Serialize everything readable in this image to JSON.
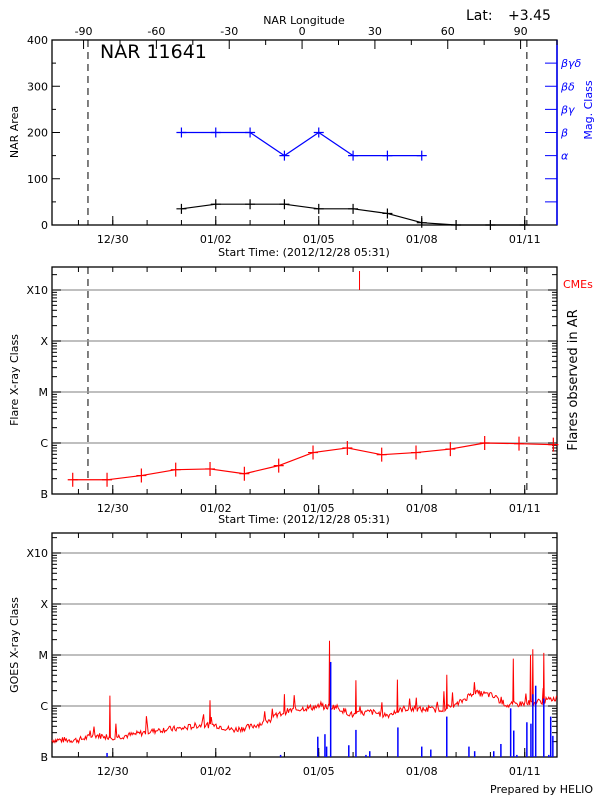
{
  "header": {
    "lat_label": "Lat:",
    "lat_value": "+3.45"
  },
  "footer": {
    "credit": "Prepared by HELIO"
  },
  "colors": {
    "area": "#000000",
    "mag_class": "#0000ff",
    "flare": "#ff0000",
    "cme": "#ff0000",
    "goes_long": "#ff0000",
    "goes_bars": "#0000ff",
    "grid": "#999999"
  },
  "time_axis": {
    "start": "2012-12-28 05:31",
    "end": "2013-01-11 22:30",
    "xlabel": "Start Time: (2012/12/28 05:31)",
    "ticks": [
      {
        "label": "12/30",
        "date": "2012-12-30 00:00"
      },
      {
        "label": "01/02",
        "date": "2013-01-02 00:00"
      },
      {
        "label": "01/05",
        "date": "2013-01-05 00:00"
      },
      {
        "label": "01/08",
        "date": "2013-01-08 00:00"
      },
      {
        "label": "01/11",
        "date": "2013-01-11 00:00"
      }
    ],
    "limb_crossings": [
      "2012-12-29 06:40",
      "2013-01-11 01:30"
    ]
  },
  "chart_data": [
    {
      "type": "line",
      "title": "NAR 11641",
      "ylabel": "NAR Area",
      "ylim": [
        0,
        400
      ],
      "yticks": [
        "0",
        "100",
        "200",
        "300",
        "400"
      ],
      "top_axis": {
        "label": "NAR Longitude",
        "ticks": [
          "-90",
          "-60",
          "-30",
          "0",
          "30",
          "60",
          "90"
        ],
        "range": [
          -103,
          105
        ]
      },
      "right_axis": {
        "label": "Mag. Class",
        "ticks": [
          {
            "label": "α",
            "value": 150
          },
          {
            "label": "β",
            "value": 200
          },
          {
            "label": "βγ",
            "value": 250
          },
          {
            "label": "βδ",
            "value": 300
          },
          {
            "label": "βγδ",
            "value": 350
          }
        ]
      },
      "series": [
        {
          "name": "NAR Area",
          "x": [
            "2013-01-01 00:00",
            "2013-01-02 00:00",
            "2013-01-03 00:00",
            "2013-01-04 00:00",
            "2013-01-05 00:00",
            "2013-01-06 00:00",
            "2013-01-07 00:00",
            "2013-01-08 00:00",
            "2013-01-09 00:00",
            "2013-01-10 00:00",
            "2013-01-11 00:00"
          ],
          "values": [
            35,
            45,
            45,
            45,
            35,
            35,
            25,
            5,
            0,
            0,
            0
          ]
        },
        {
          "name": "Mag. Class",
          "x": [
            "2013-01-01 00:00",
            "2013-01-02 00:00",
            "2013-01-03 00:00",
            "2013-01-04 00:00",
            "2013-01-05 00:00",
            "2013-01-06 00:00",
            "2013-01-07 00:00",
            "2013-01-08 00:00"
          ],
          "values": [
            "β",
            "β",
            "β",
            "α",
            "β",
            "α",
            "α",
            "α"
          ]
        }
      ]
    },
    {
      "type": "line",
      "ylabel": "Flare X-ray Class",
      "right_label": "Flares observed in AR",
      "yscale": "log",
      "yticks": [
        "B",
        "C",
        "M",
        "X",
        "X10"
      ],
      "grid": true,
      "cme_label": "CMEs",
      "cmes": [
        "2013-01-06 04:30"
      ],
      "series": [
        {
          "x": [
            "2012-12-28 20:00",
            "2012-12-29 20:00",
            "2012-12-30 20:00",
            "2012-12-31 20:00",
            "2013-01-01 20:00",
            "2013-01-02 20:00",
            "2013-01-03 20:00",
            "2013-01-04 20:00",
            "2013-01-05 20:00",
            "2013-01-06 20:00",
            "2013-01-07 20:00",
            "2013-01-08 20:00",
            "2013-01-09 20:00",
            "2013-01-10 20:00",
            "2013-01-11 20:00"
          ],
          "values": [
            "B1.9",
            "B1.9",
            "B2.3",
            "B3.0",
            "B3.1",
            "B2.5",
            "B3.6",
            "B6.5",
            "B8.0",
            "B5.9",
            "B6.5",
            "B7.6",
            "C1.0",
            "B9.7",
            "B9.3"
          ]
        }
      ]
    },
    {
      "type": "line",
      "ylabel": "GOES X-ray Class",
      "yscale": "log",
      "yticks": [
        "B",
        "C",
        "M",
        "X",
        "X10"
      ],
      "grid": true,
      "series": [
        {
          "kind": "line",
          "x": [
            "2012-12-28 05:31",
            "2012-12-28 12:00",
            "2012-12-29 00:00",
            "2012-12-29 12:00",
            "2012-12-30 00:00",
            "2012-12-30 12:00",
            "2012-12-31 00:00",
            "2012-12-31 12:00",
            "2013-01-01 00:00",
            "2013-01-01 12:00",
            "2013-01-02 00:00",
            "2013-01-02 12:00",
            "2013-01-03 00:00",
            "2013-01-03 12:00",
            "2013-01-04 00:00",
            "2013-01-04 12:00",
            "2013-01-05 00:00",
            "2013-01-05 12:00",
            "2013-01-06 00:00",
            "2013-01-06 12:00",
            "2013-01-07 00:00",
            "2013-01-07 12:00",
            "2013-01-08 00:00",
            "2013-01-08 12:00",
            "2013-01-09 00:00",
            "2013-01-09 12:00",
            "2013-01-10 00:00",
            "2013-01-10 12:00",
            "2013-01-11 00:00",
            "2013-01-11 12:00",
            "2013-01-11 22:30"
          ],
          "values": [
            "B2.1",
            "B2.1",
            "B2.1",
            "B2.6",
            "B2.4",
            "B2.6",
            "B3.0",
            "B3.4",
            "B3.5",
            "B4.1",
            "B4.1",
            "B3.3",
            "B3.8",
            "B4.8",
            "B7.5",
            "B8.7",
            "B9.4",
            "B9.4",
            "B6.4",
            "B7.5",
            "B6.4",
            "B8.7",
            "B8.3",
            "B8.3",
            "C1.0",
            "C1.8",
            "C1.6",
            "C1.0",
            "C1.1",
            "C1.2",
            "C1.4"
          ],
          "peaks": [
            {
              "x": "2012-12-29 22:00",
              "v": "C1.6"
            },
            {
              "x": "2013-01-01 20:00",
              "v": "C1.3"
            },
            {
              "x": "2013-01-04 00:00",
              "v": "C1.7"
            },
            {
              "x": "2013-01-05 07:30",
              "v": "M1.9"
            },
            {
              "x": "2013-01-06 02:00",
              "v": "C3.2"
            },
            {
              "x": "2013-01-07 07:00",
              "v": "C3.3"
            },
            {
              "x": "2013-01-08 17:30",
              "v": "C4.1"
            },
            {
              "x": "2013-01-10 16:00",
              "v": "C8.5"
            },
            {
              "x": "2013-01-11 04:00",
              "v": "M1.0"
            },
            {
              "x": "2013-01-11 05:40",
              "v": "M1.3"
            },
            {
              "x": "2013-01-11 13:20",
              "v": "M1.1"
            }
          ]
        },
        {
          "kind": "bars",
          "x": [
            "2012-12-29 20:00",
            "2013-01-03 21:20",
            "2013-01-04 23:20",
            "2013-01-05 04:20",
            "2013-01-05 05:30",
            "2013-01-05 08:20",
            "2013-01-05 21:00",
            "2013-01-06 02:00",
            "2013-01-06 09:00",
            "2013-01-06 11:40",
            "2013-01-07 07:20",
            "2013-01-08 00:00",
            "2013-01-08 06:20",
            "2013-01-08 17:30",
            "2013-01-09 09:00",
            "2013-01-09 13:00",
            "2013-01-10 02:20",
            "2013-01-10 07:20",
            "2013-01-10 14:10",
            "2013-01-10 16:20",
            "2013-01-10 18:30",
            "2013-01-11 01:30",
            "2013-01-11 04:20",
            "2013-01-11 05:40",
            "2013-01-11 07:40",
            "2013-01-11 13:20",
            "2013-01-11 16:50",
            "2013-01-11 18:10",
            "2013-01-11 19:40"
          ],
          "values": [
            "B1.2",
            "B1.1",
            "B2.5",
            "B2.8",
            "B1.6",
            "C7.3",
            "B1.7",
            "B3.4",
            "B1.1",
            "B1.3",
            "B3.8",
            "B1.6",
            "B1.4",
            "B6.2",
            "B1.6",
            "B1.3",
            "B1.3",
            "B1.8",
            "B9.0",
            "B3.3",
            "B1.1",
            "B4.8",
            "B4.5",
            "C1.7",
            "C2.5",
            "C1.4",
            "B1.1",
            "B6.2",
            "B2.6"
          ]
        }
      ]
    }
  ]
}
